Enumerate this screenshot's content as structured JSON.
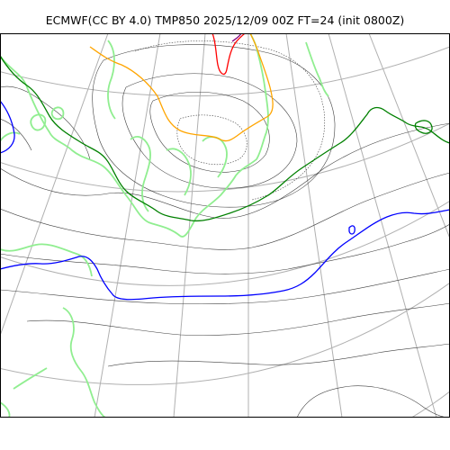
{
  "title": "ECMWF(CC BY 4.0) TMP850 2025/12/09 00Z FT=24 (init 0800Z)",
  "colors": {
    "coastline": "#90ee90",
    "graticule": "#b0b0b0",
    "pressure_contours": "#404040",
    "isotherm_plus6": "#ffa500",
    "isotherm_0": "#008000",
    "isotherm_minus6": "#0000ff",
    "isotherm_plus12": "#ff0000",
    "isotherm_plus18": "#800080"
  }
}
